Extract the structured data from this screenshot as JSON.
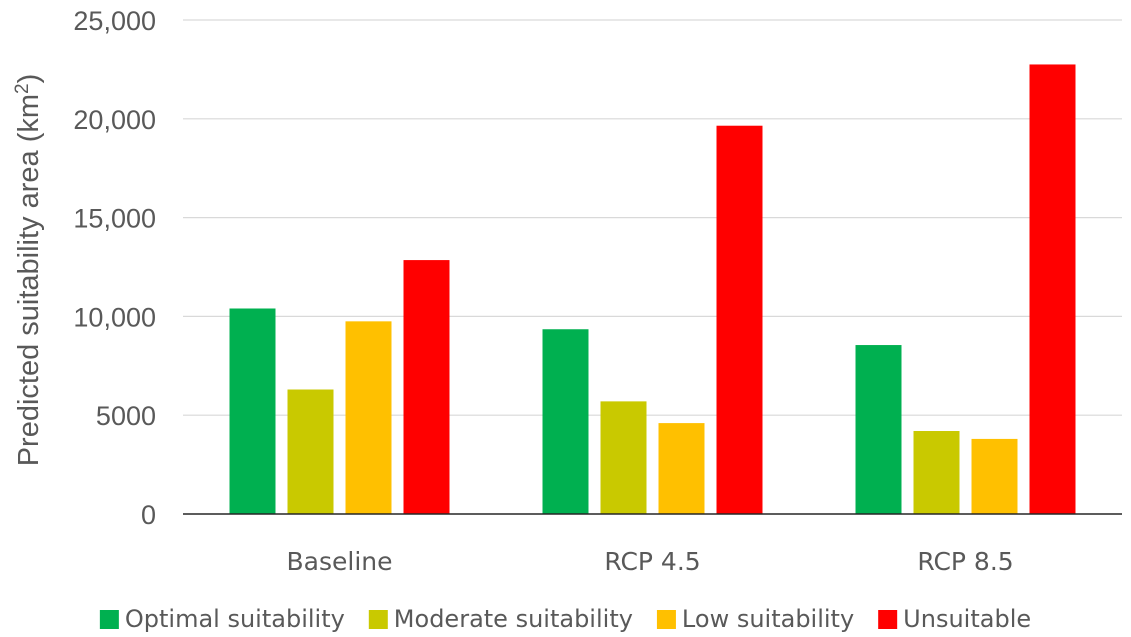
{
  "chart_data": {
    "type": "bar",
    "title": "",
    "xlabel": "",
    "ylabel": "Predicted suitability area (km",
    "ylabel_sup": "2",
    "ylabel_end": ")",
    "ylim": [
      0,
      25000
    ],
    "y_ticks": [
      0,
      5000,
      10000,
      15000,
      20000,
      25000
    ],
    "y_tick_labels": [
      "0",
      "5000",
      "10,000",
      "15,000",
      "20,000",
      "25,000"
    ],
    "grid": true,
    "legend_position": "bottom",
    "categories": [
      "Baseline",
      "RCP 4.5",
      "RCP 8.5"
    ],
    "series": [
      {
        "name": "Optimal suitability",
        "color": "#00b050",
        "values": [
          10400,
          9350,
          8550
        ]
      },
      {
        "name": "Moderate suitability",
        "color": "#c9c900",
        "values": [
          6300,
          5700,
          4200
        ]
      },
      {
        "name": "Low suitability",
        "color": "#ffc000",
        "values": [
          9750,
          4600,
          3800
        ]
      },
      {
        "name": "Unsuitable",
        "color": "#ff0000",
        "values": [
          12850,
          19650,
          22750
        ]
      }
    ]
  }
}
